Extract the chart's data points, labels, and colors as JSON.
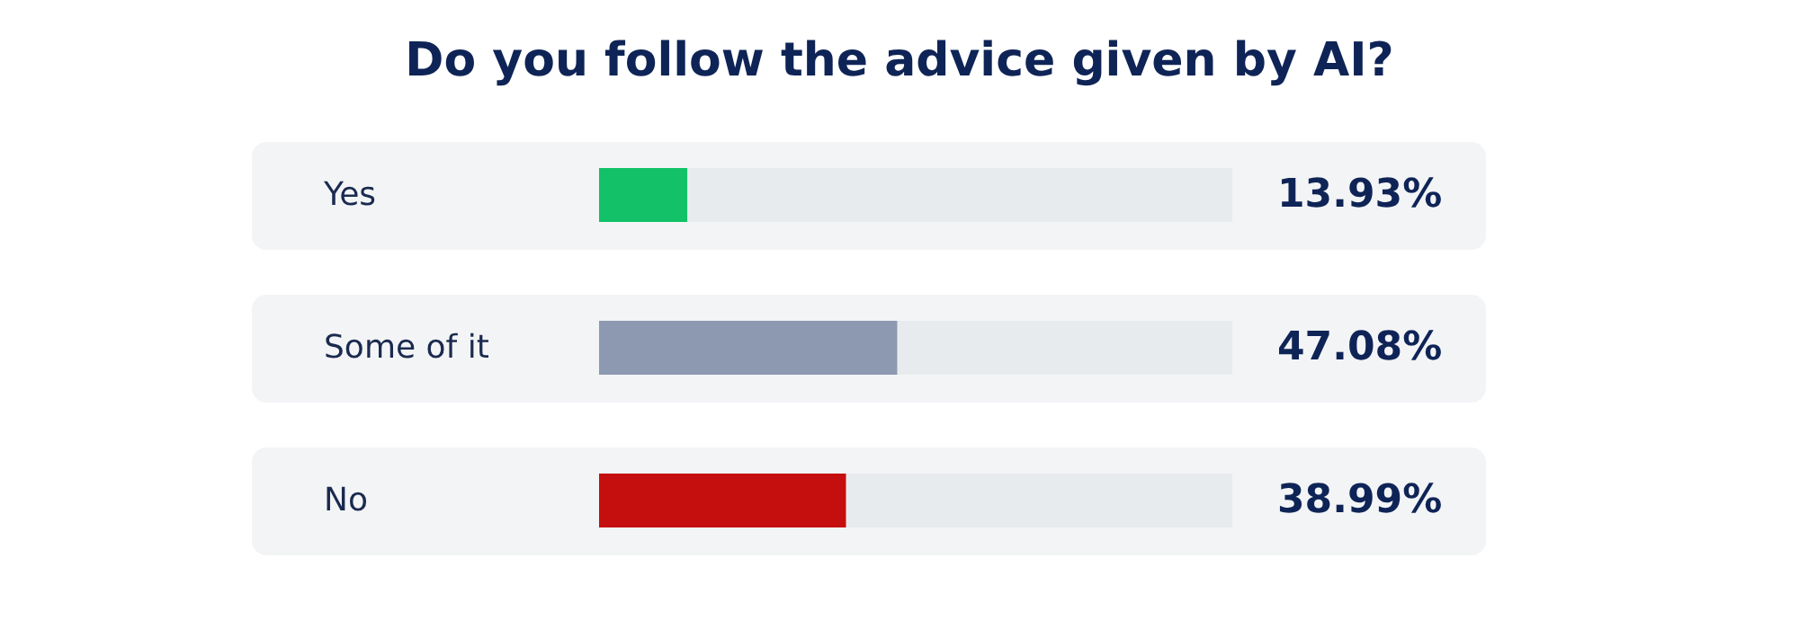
{
  "chart_data": {
    "type": "bar",
    "orientation": "horizontal",
    "title": "Do you follow the advice given by AI?",
    "categories": [
      "Yes",
      "Some of it",
      "No"
    ],
    "values": [
      13.93,
      47.08,
      38.99
    ],
    "colors": [
      "#12c168",
      "#8c99b0",
      "#c50f0f"
    ],
    "value_labels": [
      "13.93%",
      "47.08%",
      "38.99%"
    ],
    "xlim": [
      0,
      100
    ],
    "tick_labels": "y"
  }
}
